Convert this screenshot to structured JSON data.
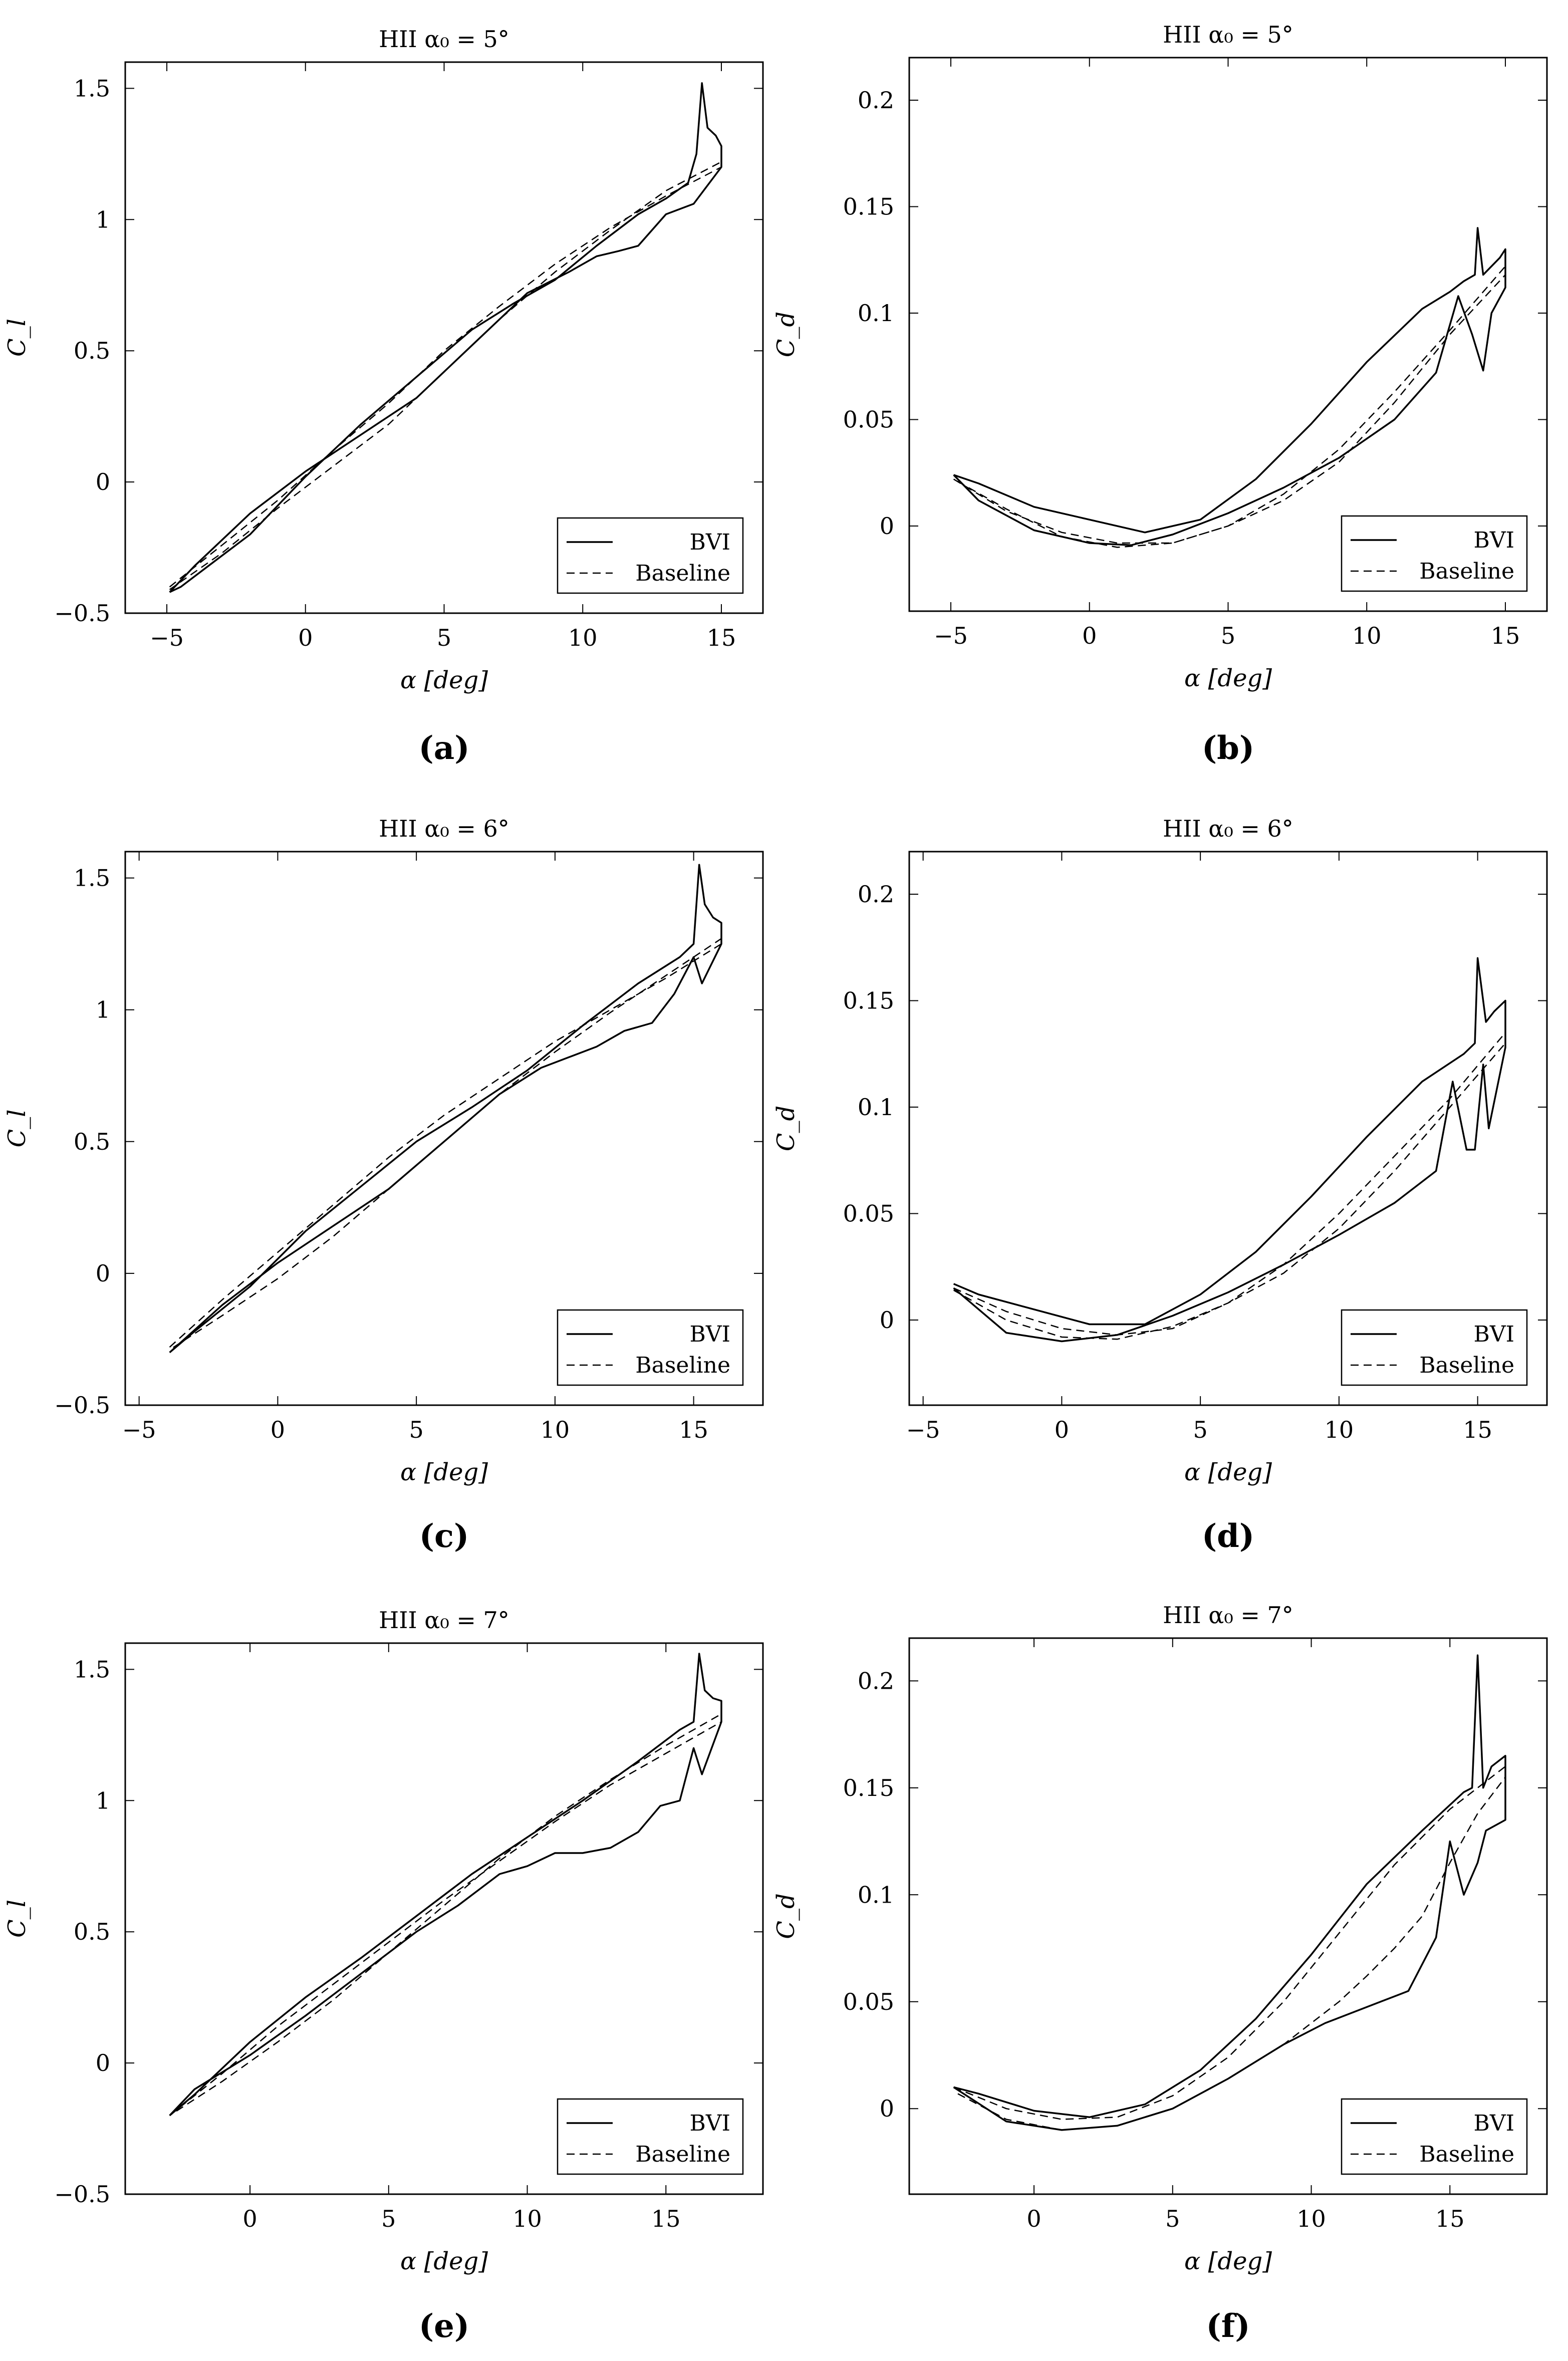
{
  "chart_data": [
    {
      "id": "a",
      "caption": "(a)",
      "type": "line",
      "title": "HII α₀ = 5°",
      "xlabel": "α [deg]",
      "ylabel": "C_l",
      "xlim": [
        -6.5,
        16.5
      ],
      "ylim": [
        -0.5,
        1.6
      ],
      "xticks": [
        -5,
        0,
        5,
        10,
        15
      ],
      "yticks": [
        -0.5,
        0,
        0.5,
        1,
        1.5
      ],
      "xtick_labels": [
        "−5",
        "0",
        "5",
        "10",
        "15"
      ],
      "ytick_labels": [
        "−0.5",
        "0",
        "0.5",
        "1",
        "1.5"
      ],
      "legend": {
        "position": "bottom-right",
        "entries": [
          "BVI",
          "Baseline"
        ]
      },
      "series": [
        {
          "name": "BVI",
          "style": "solid",
          "x": [
            -4.9,
            -4.5,
            -3.5,
            -2,
            0,
            2,
            4,
            6,
            7.5,
            9,
            10.5,
            12,
            13,
            13.8,
            14.1,
            14.3,
            14.5,
            14.8,
            15.0,
            15.0,
            14,
            13,
            12,
            11.3,
            10.5,
            9.5,
            8,
            6,
            4,
            2,
            0,
            -2,
            -4,
            -4.9
          ],
          "y": [
            -0.42,
            -0.4,
            -0.32,
            -0.2,
            0.02,
            0.22,
            0.4,
            0.58,
            0.68,
            0.77,
            0.9,
            1.02,
            1.08,
            1.14,
            1.25,
            1.52,
            1.35,
            1.32,
            1.28,
            1.2,
            1.06,
            1.02,
            0.9,
            0.88,
            0.86,
            0.8,
            0.72,
            0.52,
            0.32,
            0.18,
            0.04,
            -0.12,
            -0.32,
            -0.42
          ]
        },
        {
          "name": "Baseline",
          "style": "dashed",
          "x": [
            -4.9,
            -3,
            -1,
            1,
            3,
            5,
            7,
            9,
            11,
            13,
            15,
            15,
            13,
            11,
            9,
            7,
            5,
            3,
            1,
            -1,
            -3,
            -4.9
          ],
          "y": [
            -0.4,
            -0.24,
            -0.07,
            0.12,
            0.3,
            0.5,
            0.67,
            0.83,
            0.97,
            1.09,
            1.2,
            1.22,
            1.11,
            0.96,
            0.8,
            0.62,
            0.42,
            0.22,
            0.06,
            -0.1,
            -0.27,
            -0.41
          ]
        }
      ]
    },
    {
      "id": "b",
      "caption": "(b)",
      "type": "line",
      "title": "HII α₀ = 5°",
      "xlabel": "α [deg]",
      "ylabel": "C_d",
      "xlim": [
        -6.5,
        16.5
      ],
      "ylim": [
        -0.04,
        0.22
      ],
      "xticks": [
        -5,
        0,
        5,
        10,
        15
      ],
      "yticks": [
        0,
        0.05,
        0.1,
        0.15,
        0.2
      ],
      "xtick_labels": [
        "−5",
        "0",
        "5",
        "10",
        "15"
      ],
      "ytick_labels": [
        "0",
        "0.05",
        "0.1",
        "0.15",
        "0.2"
      ],
      "legend": {
        "position": "bottom-right",
        "entries": [
          "BVI",
          "Baseline"
        ]
      },
      "series": [
        {
          "name": "BVI",
          "style": "solid",
          "x": [
            -4.9,
            -4,
            -2,
            0,
            2,
            4,
            6,
            8,
            10,
            12,
            13,
            13.5,
            13.9,
            14.0,
            14.2,
            14.5,
            14.8,
            15.0,
            15.0,
            14.5,
            14.2,
            13.8,
            13.3,
            12.5,
            11,
            9,
            7,
            5,
            3,
            1.5,
            0,
            -2,
            -4,
            -4.9
          ],
          "y": [
            0.024,
            0.02,
            0.009,
            0.003,
            -0.003,
            0.003,
            0.022,
            0.048,
            0.077,
            0.102,
            0.11,
            0.115,
            0.118,
            0.14,
            0.118,
            0.122,
            0.126,
            0.13,
            0.112,
            0.1,
            0.073,
            0.09,
            0.108,
            0.072,
            0.05,
            0.032,
            0.018,
            0.006,
            -0.004,
            -0.009,
            -0.008,
            -0.002,
            0.012,
            0.024
          ]
        },
        {
          "name": "Baseline",
          "style": "dashed",
          "x": [
            -4.9,
            -3,
            -1,
            1,
            3,
            5,
            7,
            9,
            11,
            13,
            15,
            15,
            13,
            11,
            9,
            7,
            5,
            3,
            1,
            -1,
            -3,
            -4.9
          ],
          "y": [
            0.022,
            0.007,
            -0.003,
            -0.008,
            -0.008,
            0.0,
            0.015,
            0.036,
            0.063,
            0.092,
            0.122,
            0.118,
            0.09,
            0.058,
            0.03,
            0.012,
            0.0,
            -0.008,
            -0.01,
            -0.005,
            0.008,
            0.022
          ]
        }
      ]
    },
    {
      "id": "c",
      "caption": "(c)",
      "type": "line",
      "title": "HII α₀ = 6°",
      "xlabel": "α [deg]",
      "ylabel": "C_l",
      "xlim": [
        -5.5,
        17.5
      ],
      "ylim": [
        -0.5,
        1.6
      ],
      "xticks": [
        -5,
        0,
        5,
        10,
        15
      ],
      "yticks": [
        -0.5,
        0,
        0.5,
        1,
        1.5
      ],
      "xtick_labels": [
        "−5",
        "0",
        "5",
        "10",
        "15"
      ],
      "ytick_labels": [
        "−0.5",
        "0",
        "0.5",
        "1",
        "1.5"
      ],
      "legend": {
        "position": "bottom-right",
        "entries": [
          "BVI",
          "Baseline"
        ]
      },
      "series": [
        {
          "name": "BVI",
          "style": "solid",
          "x": [
            -3.9,
            -3,
            -1,
            1,
            3,
            5,
            7,
            9,
            11,
            13,
            14.5,
            15.0,
            15.2,
            15.4,
            15.7,
            16.0,
            16.0,
            15.3,
            15.0,
            14.3,
            13.5,
            12.5,
            11.5,
            10.5,
            9.5,
            8,
            6,
            4,
            2,
            0,
            -2,
            -3.9
          ],
          "y": [
            -0.3,
            -0.22,
            -0.05,
            0.16,
            0.33,
            0.5,
            0.63,
            0.77,
            0.94,
            1.1,
            1.2,
            1.25,
            1.55,
            1.4,
            1.35,
            1.33,
            1.25,
            1.1,
            1.2,
            1.06,
            0.95,
            0.92,
            0.86,
            0.82,
            0.78,
            0.68,
            0.5,
            0.32,
            0.18,
            0.04,
            -0.12,
            -0.3
          ]
        },
        {
          "name": "Baseline",
          "style": "dashed",
          "x": [
            -3.9,
            -2,
            0,
            2,
            4,
            6,
            8,
            10,
            12,
            14,
            16,
            16,
            14,
            12,
            10,
            8,
            6,
            4,
            2,
            0,
            -2,
            -3.9
          ],
          "y": [
            -0.28,
            -0.1,
            0.08,
            0.26,
            0.44,
            0.6,
            0.74,
            0.88,
            1.0,
            1.12,
            1.25,
            1.27,
            1.13,
            0.99,
            0.84,
            0.68,
            0.5,
            0.32,
            0.14,
            -0.02,
            -0.16,
            -0.29
          ]
        }
      ]
    },
    {
      "id": "d",
      "caption": "(d)",
      "type": "line",
      "title": "HII α₀ = 6°",
      "xlabel": "α [deg]",
      "ylabel": "C_d",
      "xlim": [
        -5.5,
        17.5
      ],
      "ylim": [
        -0.04,
        0.22
      ],
      "xticks": [
        -5,
        0,
        5,
        10,
        15
      ],
      "yticks": [
        0,
        0.05,
        0.1,
        0.15,
        0.2
      ],
      "xtick_labels": [
        "−5",
        "0",
        "5",
        "10",
        "15"
      ],
      "ytick_labels": [
        "0",
        "0.05",
        "0.1",
        "0.15",
        "0.2"
      ],
      "legend": {
        "position": "bottom-right",
        "entries": [
          "BVI",
          "Baseline"
        ]
      },
      "series": [
        {
          "name": "BVI",
          "style": "solid",
          "x": [
            -3.9,
            -3,
            -1,
            1,
            3,
            5,
            7,
            9,
            11,
            13,
            14.5,
            14.9,
            15.0,
            15.3,
            15.6,
            16.0,
            16.0,
            15.4,
            15.2,
            14.9,
            14.6,
            14.1,
            13.5,
            12,
            10,
            8,
            6,
            4,
            2,
            0,
            -2,
            -3.9
          ],
          "y": [
            0.017,
            0.012,
            0.005,
            -0.002,
            -0.002,
            0.012,
            0.032,
            0.058,
            0.086,
            0.112,
            0.125,
            0.13,
            0.17,
            0.14,
            0.145,
            0.15,
            0.128,
            0.09,
            0.12,
            0.08,
            0.08,
            0.112,
            0.07,
            0.055,
            0.04,
            0.026,
            0.013,
            0.002,
            -0.007,
            -0.01,
            -0.006,
            0.015
          ]
        },
        {
          "name": "Baseline",
          "style": "dashed",
          "x": [
            -3.9,
            -2,
            0,
            2,
            4,
            6,
            8,
            10,
            12,
            14,
            16,
            16,
            14,
            12,
            10,
            8,
            6,
            4,
            2,
            0,
            -2,
            -3.9
          ],
          "y": [
            0.015,
            0.004,
            -0.004,
            -0.007,
            -0.004,
            0.008,
            0.026,
            0.05,
            0.077,
            0.104,
            0.135,
            0.13,
            0.1,
            0.07,
            0.043,
            0.022,
            0.008,
            -0.003,
            -0.009,
            -0.008,
            0.0,
            0.014
          ]
        }
      ]
    },
    {
      "id": "e",
      "caption": "(e)",
      "type": "line",
      "title": "HII α₀ = 7°",
      "xlabel": "α [deg]",
      "ylabel": "C_l",
      "xlim": [
        -4.5,
        18.5
      ],
      "ylim": [
        -0.5,
        1.6
      ],
      "xticks": [
        0,
        5,
        10,
        15
      ],
      "yticks": [
        -0.5,
        0,
        0.5,
        1,
        1.5
      ],
      "xtick_labels": [
        "0",
        "5",
        "10",
        "15"
      ],
      "ytick_labels": [
        "−0.5",
        "0",
        "0.5",
        "1",
        "1.5"
      ],
      "legend": {
        "position": "bottom-right",
        "entries": [
          "BVI",
          "Baseline"
        ]
      },
      "series": [
        {
          "name": "BVI",
          "style": "solid",
          "x": [
            -2.9,
            -2,
            0,
            2,
            4,
            6,
            8,
            10,
            12,
            14,
            15.5,
            16.0,
            16.2,
            16.4,
            16.7,
            17.0,
            17.0,
            16.3,
            16.0,
            15.5,
            14.8,
            14.0,
            13,
            12,
            11,
            10,
            9,
            7.5,
            6,
            4,
            2,
            0,
            -2,
            -2.9
          ],
          "y": [
            -0.2,
            -0.12,
            0.08,
            0.25,
            0.4,
            0.56,
            0.72,
            0.86,
            1.0,
            1.15,
            1.27,
            1.3,
            1.56,
            1.42,
            1.39,
            1.38,
            1.3,
            1.1,
            1.2,
            1.0,
            0.98,
            0.88,
            0.82,
            0.8,
            0.8,
            0.75,
            0.72,
            0.6,
            0.5,
            0.34,
            0.18,
            0.03,
            -0.1,
            -0.2
          ]
        },
        {
          "name": "Baseline",
          "style": "dashed",
          "x": [
            -2.9,
            -1,
            1,
            3,
            5,
            7,
            9,
            11,
            13,
            15,
            17,
            17,
            15,
            13,
            11,
            9,
            7,
            5,
            3,
            1,
            -1,
            -2.9
          ],
          "y": [
            -0.2,
            -0.04,
            0.14,
            0.3,
            0.46,
            0.62,
            0.77,
            0.92,
            1.06,
            1.18,
            1.3,
            1.33,
            1.21,
            1.08,
            0.94,
            0.78,
            0.6,
            0.42,
            0.24,
            0.08,
            -0.07,
            -0.2
          ]
        }
      ]
    },
    {
      "id": "f",
      "caption": "(f)",
      "type": "line",
      "title": "HII α₀ = 7°",
      "xlabel": "α [deg]",
      "ylabel": "C_d",
      "xlim": [
        -4.5,
        18.5
      ],
      "ylim": [
        -0.04,
        0.22
      ],
      "xticks": [
        0,
        5,
        10,
        15
      ],
      "yticks": [
        0,
        0.05,
        0.1,
        0.15,
        0.2
      ],
      "xtick_labels": [
        "0",
        "5",
        "10",
        "15"
      ],
      "ytick_labels": [
        "0",
        "0.05",
        "0.1",
        "0.15",
        "0.2"
      ],
      "legend": {
        "position": "bottom-right",
        "entries": [
          "BVI",
          "Baseline"
        ]
      },
      "series": [
        {
          "name": "BVI",
          "style": "solid",
          "x": [
            -2.9,
            -2,
            0,
            2,
            4,
            6,
            8,
            10,
            12,
            14,
            15.5,
            15.8,
            16.0,
            16.2,
            16.5,
            17.0,
            17.0,
            16.3,
            16.0,
            15.5,
            15.0,
            14.5,
            13.5,
            12.5,
            11.5,
            10.5,
            9,
            7,
            5,
            3,
            1,
            -1,
            -2.9
          ],
          "y": [
            0.01,
            0.007,
            -0.001,
            -0.004,
            0.002,
            0.018,
            0.042,
            0.072,
            0.105,
            0.13,
            0.148,
            0.15,
            0.212,
            0.15,
            0.16,
            0.165,
            0.135,
            0.13,
            0.115,
            0.1,
            0.125,
            0.08,
            0.055,
            0.05,
            0.045,
            0.04,
            0.03,
            0.014,
            0.0,
            -0.008,
            -0.01,
            -0.006,
            0.01
          ]
        },
        {
          "name": "Baseline",
          "style": "dashed",
          "x": [
            -2.9,
            -1,
            1,
            3,
            5,
            7,
            9,
            11,
            13,
            15,
            17,
            17,
            16,
            15,
            14,
            13,
            12,
            11,
            9,
            7,
            5,
            3,
            1,
            -1,
            -2.9
          ],
          "y": [
            0.01,
            0.0,
            -0.005,
            -0.004,
            0.006,
            0.024,
            0.05,
            0.082,
            0.114,
            0.14,
            0.16,
            0.155,
            0.138,
            0.115,
            0.09,
            0.075,
            0.062,
            0.05,
            0.03,
            0.014,
            0.0,
            -0.008,
            -0.01,
            -0.005,
            0.008
          ]
        }
      ]
    }
  ]
}
